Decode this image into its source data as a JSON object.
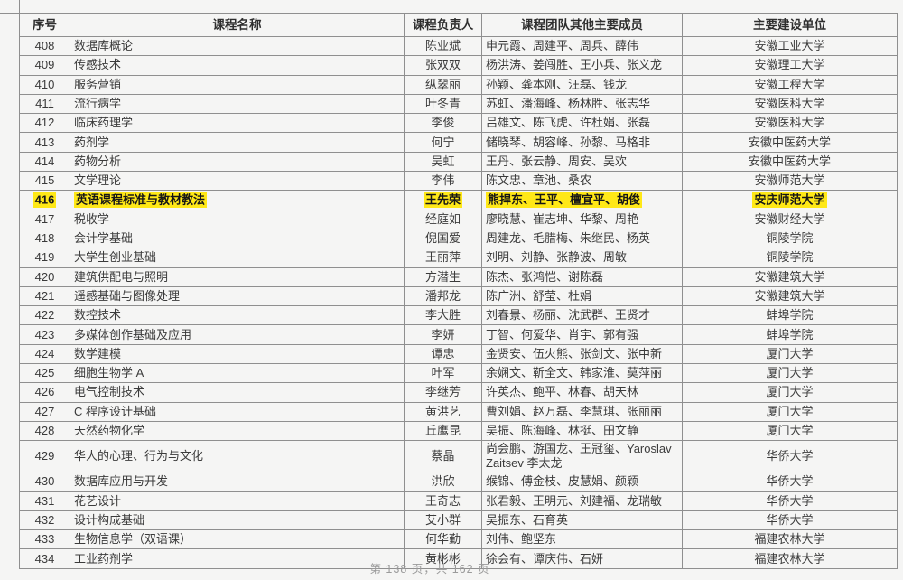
{
  "colors": {
    "highlight": "#ffe817",
    "grid": "#8f8f8f"
  },
  "table": {
    "headers": [
      "序号",
      "课程名称",
      "课程负责人",
      "课程团队其他主要成员",
      "主要建设单位"
    ],
    "rows": [
      {
        "no": "408",
        "course": "数据库概论",
        "leader": "陈业斌",
        "team": "申元霞、周建平、周兵、薛伟",
        "unit": "安徽工业大学",
        "highlight": false
      },
      {
        "no": "409",
        "course": "传感技术",
        "leader": "张双双",
        "team": "杨洪涛、姜闯胜、王小兵、张义龙",
        "unit": "安徽理工大学",
        "highlight": false
      },
      {
        "no": "410",
        "course": "服务营销",
        "leader": "纵翠丽",
        "team": "孙颖、龚本刚、汪磊、钱龙",
        "unit": "安徽工程大学",
        "highlight": false
      },
      {
        "no": "411",
        "course": "流行病学",
        "leader": "叶冬青",
        "team": "苏虹、潘海峰、杨林胜、张志华",
        "unit": "安徽医科大学",
        "highlight": false
      },
      {
        "no": "412",
        "course": "临床药理学",
        "leader": "李俊",
        "team": "吕雄文、陈飞虎、许杜娟、张磊",
        "unit": "安徽医科大学",
        "highlight": false
      },
      {
        "no": "413",
        "course": "药剂学",
        "leader": "何宁",
        "team": "储晓琴、胡容峰、孙黎、马格非",
        "unit": "安徽中医药大学",
        "highlight": false
      },
      {
        "no": "414",
        "course": "药物分析",
        "leader": "吴虹",
        "team": "王丹、张云静、周安、吴欢",
        "unit": "安徽中医药大学",
        "highlight": false
      },
      {
        "no": "415",
        "course": "文学理论",
        "leader": "李伟",
        "team": "陈文忠、章池、桑农",
        "unit": "安徽师范大学",
        "highlight": false
      },
      {
        "no": "416",
        "course": "英语课程标准与教材教法",
        "leader": "王先荣",
        "team": "熊捍东、王平、檀宜平、胡俊",
        "unit": "安庆师范大学",
        "highlight": true
      },
      {
        "no": "417",
        "course": "税收学",
        "leader": "经庭如",
        "team": "廖晓慧、崔志坤、华黎、周艳",
        "unit": "安徽财经大学",
        "highlight": false
      },
      {
        "no": "418",
        "course": "会计学基础",
        "leader": "倪国爱",
        "team": "周建龙、毛腊梅、朱继民、杨英",
        "unit": "铜陵学院",
        "highlight": false
      },
      {
        "no": "419",
        "course": "大学生创业基础",
        "leader": "王丽萍",
        "team": "刘明、刘静、张静波、周敏",
        "unit": "铜陵学院",
        "highlight": false
      },
      {
        "no": "420",
        "course": "建筑供配电与照明",
        "leader": "方潜生",
        "team": "陈杰、张鸿恺、谢陈磊",
        "unit": "安徽建筑大学",
        "highlight": false
      },
      {
        "no": "421",
        "course": "遥感基础与图像处理",
        "leader": "潘邦龙",
        "team": "陈广洲、舒莹、杜娟",
        "unit": "安徽建筑大学",
        "highlight": false
      },
      {
        "no": "422",
        "course": "数控技术",
        "leader": "李大胜",
        "team": "刘春景、杨丽、沈武群、王贤才",
        "unit": "蚌埠学院",
        "highlight": false
      },
      {
        "no": "423",
        "course": "多媒体创作基础及应用",
        "leader": "李妍",
        "team": "丁智、何爱华、肖宇、郭有强",
        "unit": "蚌埠学院",
        "highlight": false
      },
      {
        "no": "424",
        "course": "数学建模",
        "leader": "谭忠",
        "team": "金贤安、伍火熊、张剑文、张中新",
        "unit": "厦门大学",
        "highlight": false
      },
      {
        "no": "425",
        "course": "细胞生物学 A",
        "leader": "叶军",
        "team": "余娴文、靳全文、韩家淮、莫萍丽",
        "unit": "厦门大学",
        "highlight": false
      },
      {
        "no": "426",
        "course": "电气控制技术",
        "leader": "李继芳",
        "team": "许英杰、鲍平、林春、胡天林",
        "unit": "厦门大学",
        "highlight": false
      },
      {
        "no": "427",
        "course": "C 程序设计基础",
        "leader": "黄洪艺",
        "team": "曹刘娟、赵万磊、李慧琪、张丽丽",
        "unit": "厦门大学",
        "highlight": false
      },
      {
        "no": "428",
        "course": "天然药物化学",
        "leader": "丘鹰昆",
        "team": "吴振、陈海峰、林挺、田文静",
        "unit": "厦门大学",
        "highlight": false
      },
      {
        "no": "429",
        "course": "华人的心理、行为与文化",
        "leader": "蔡晶",
        "team": "尚会鹏、游国龙、王冠玺、Yaroslav Zaitsev 李太龙",
        "unit": "华侨大学",
        "highlight": false
      },
      {
        "no": "430",
        "course": "数据库应用与开发",
        "leader": "洪欣",
        "team": "缑锦、傅金枝、皮慧娟、颜颖",
        "unit": "华侨大学",
        "highlight": false
      },
      {
        "no": "431",
        "course": "花艺设计",
        "leader": "王奇志",
        "team": "张君毅、王明元、刘建福、龙瑞敏",
        "unit": "华侨大学",
        "highlight": false
      },
      {
        "no": "432",
        "course": "设计构成基础",
        "leader": "艾小群",
        "team": "吴振东、石育英",
        "unit": "华侨大学",
        "highlight": false
      },
      {
        "no": "433",
        "course": "生物信息学（双语课）",
        "leader": "何华勤",
        "team": "刘伟、鲍坚东",
        "unit": "福建农林大学",
        "highlight": false
      },
      {
        "no": "434",
        "course": "工业药剂学",
        "leader": "黄彬彬",
        "team": "徐会有、谭庆伟、石妍",
        "unit": "福建农林大学",
        "highlight": false
      }
    ]
  },
  "footer": {
    "page_text": "第 138 页，共 162 页"
  }
}
